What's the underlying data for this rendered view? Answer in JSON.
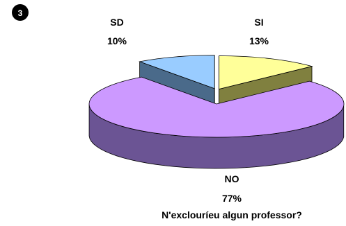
{
  "badge": "3",
  "chart_data": {
    "type": "pie",
    "title": "N'exclouríeu algun professor?",
    "slices": [
      {
        "name": "SI",
        "value": 13,
        "label": "13%",
        "color": "#ffff99",
        "side_color": "#80803f",
        "exploded": true
      },
      {
        "name": "NO",
        "value": 77,
        "label": "77%",
        "color": "#cc99ff",
        "side_color": "#6b5494",
        "exploded": false
      },
      {
        "name": "SD",
        "value": 10,
        "label": "10%",
        "color": "#99ccff",
        "side_color": "#4a6a8a",
        "exploded": true
      }
    ],
    "start_angle_deg": 0,
    "style": "3d"
  }
}
